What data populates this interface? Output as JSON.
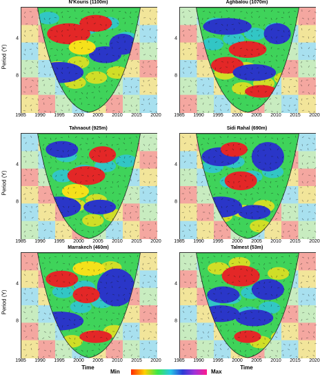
{
  "chart_data": [
    {
      "type": "heatmap",
      "title": "N'Kouris (1100m)",
      "xlabel": "",
      "ylabel": "Period (Y)",
      "xlim": [
        1985,
        2020
      ],
      "x_ticks": [
        "1985",
        "1990",
        "1995",
        "2000",
        "2005",
        "2010",
        "2015",
        "2020"
      ],
      "y_ticks": [
        "4",
        "8"
      ]
    },
    {
      "type": "heatmap",
      "title": "Aghbalou (1070m)",
      "xlabel": "",
      "ylabel": "",
      "xlim": [
        1985,
        2020
      ],
      "x_ticks": [
        "1985",
        "1990",
        "1995",
        "2000",
        "2005",
        "2010",
        "2015",
        "2020"
      ],
      "y_ticks": [
        "4",
        "8"
      ]
    },
    {
      "type": "heatmap",
      "title": "Tahnaout (925m)",
      "xlabel": "",
      "ylabel": "Period (Y)",
      "xlim": [
        1985,
        2020
      ],
      "x_ticks": [
        "1985",
        "1990",
        "1995",
        "2000",
        "2005",
        "2010",
        "2015",
        "2020"
      ],
      "y_ticks": [
        "4",
        "8"
      ]
    },
    {
      "type": "heatmap",
      "title": "Sidi Rahal (690m)",
      "xlabel": "",
      "ylabel": "",
      "xlim": [
        1985,
        2020
      ],
      "x_ticks": [
        "1985",
        "1990",
        "1995",
        "2000",
        "2005",
        "2010",
        "2015",
        "2020"
      ],
      "y_ticks": [
        "4",
        "8"
      ]
    },
    {
      "type": "heatmap",
      "title": "Marrakech (460m)",
      "xlabel": "Time",
      "ylabel": "Period (Y)",
      "xlim": [
        1985,
        2020
      ],
      "x_ticks": [
        "1985",
        "1990",
        "1995",
        "2000",
        "2005",
        "2010",
        "2015",
        "2020"
      ],
      "y_ticks": [
        "4",
        "8"
      ]
    },
    {
      "type": "heatmap",
      "title": "Talmest (53m)",
      "xlabel": "Time",
      "ylabel": "",
      "xlim": [
        1985,
        2020
      ],
      "x_ticks": [
        "1985",
        "1990",
        "1995",
        "2000",
        "2005",
        "2010",
        "2015",
        "2020"
      ],
      "y_ticks": [
        "4",
        "8"
      ]
    }
  ],
  "colorbar": {
    "min_label": "Min",
    "max_label": "Max"
  }
}
